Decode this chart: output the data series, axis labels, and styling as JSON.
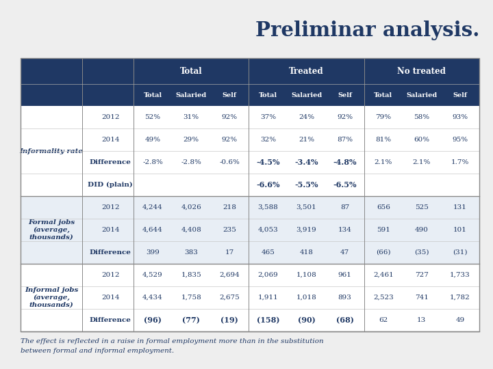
{
  "title": "Preliminar analysis.",
  "title_color": "#1f3864",
  "bg_color": "#eeeeee",
  "header_bg": "#1f3864",
  "header_text_color": "#ffffff",
  "shaded_bg": "#e8eef5",
  "normal_bg": "#ffffff",
  "footer": "The effect is reflected in a raise in formal employment more than in the substitution\nbetween formal and informal employment.",
  "col_group_labels": [
    "Total",
    "Treated",
    "No treated"
  ],
  "col_headers": [
    "Total",
    "Salaried",
    "Self",
    "Total",
    "Salaried",
    "Self",
    "Total",
    "Salaried",
    "Self"
  ],
  "row_groups": [
    {
      "label": "Informality rate",
      "shaded": false,
      "rows": [
        {
          "sub": "2012",
          "bold_sub": false,
          "values": [
            "52%",
            "31%",
            "92%",
            "37%",
            "24%",
            "92%",
            "79%",
            "58%",
            "93%"
          ],
          "bold": [
            false,
            false,
            false,
            false,
            false,
            false,
            false,
            false,
            false
          ]
        },
        {
          "sub": "2014",
          "bold_sub": false,
          "values": [
            "49%",
            "29%",
            "92%",
            "32%",
            "21%",
            "87%",
            "81%",
            "60%",
            "95%"
          ],
          "bold": [
            false,
            false,
            false,
            false,
            false,
            false,
            false,
            false,
            false
          ]
        },
        {
          "sub": "Difference",
          "bold_sub": true,
          "values": [
            "-2.8%",
            "-2.8%",
            "-0.6%",
            "-4.5%",
            "-3.4%",
            "-4.8%",
            "2.1%",
            "2.1%",
            "1.7%"
          ],
          "bold": [
            false,
            false,
            false,
            true,
            true,
            true,
            false,
            false,
            false
          ]
        },
        {
          "sub": "DID (plain)",
          "bold_sub": true,
          "values": [
            "",
            "",
            "",
            "-6.6%",
            "-5.5%",
            "-6.5%",
            "",
            "",
            ""
          ],
          "bold": [
            false,
            false,
            false,
            true,
            true,
            true,
            false,
            false,
            false
          ]
        }
      ]
    },
    {
      "label": "Formal jobs\n(average,\nthousands)",
      "shaded": true,
      "rows": [
        {
          "sub": "2012",
          "bold_sub": false,
          "values": [
            "4,244",
            "4,026",
            "218",
            "3,588",
            "3,501",
            "87",
            "656",
            "525",
            "131"
          ],
          "bold": [
            false,
            false,
            false,
            false,
            false,
            false,
            false,
            false,
            false
          ]
        },
        {
          "sub": "2014",
          "bold_sub": false,
          "values": [
            "4,644",
            "4,408",
            "235",
            "4,053",
            "3,919",
            "134",
            "591",
            "490",
            "101"
          ],
          "bold": [
            false,
            false,
            false,
            false,
            false,
            false,
            false,
            false,
            false
          ]
        },
        {
          "sub": "Difference",
          "bold_sub": true,
          "values": [
            "399",
            "383",
            "17",
            "465",
            "418",
            "47",
            "(66)",
            "(35)",
            "(31)"
          ],
          "bold": [
            false,
            false,
            false,
            false,
            false,
            false,
            false,
            false,
            false
          ]
        }
      ]
    },
    {
      "label": "Informal jobs\n(average,\nthousands)",
      "shaded": false,
      "rows": [
        {
          "sub": "2012",
          "bold_sub": false,
          "values": [
            "4,529",
            "1,835",
            "2,694",
            "2,069",
            "1,108",
            "961",
            "2,461",
            "727",
            "1,733"
          ],
          "bold": [
            false,
            false,
            false,
            false,
            false,
            false,
            false,
            false,
            false
          ]
        },
        {
          "sub": "2014",
          "bold_sub": false,
          "values": [
            "4,434",
            "1,758",
            "2,675",
            "1,911",
            "1,018",
            "893",
            "2,523",
            "741",
            "1,782"
          ],
          "bold": [
            false,
            false,
            false,
            false,
            false,
            false,
            false,
            false,
            false
          ]
        },
        {
          "sub": "Difference",
          "bold_sub": true,
          "values": [
            "(96)",
            "(77)",
            "(19)",
            "(158)",
            "(90)",
            "(68)",
            "62",
            "13",
            "49"
          ],
          "bold": [
            true,
            true,
            true,
            true,
            true,
            true,
            false,
            false,
            false
          ]
        }
      ]
    }
  ]
}
